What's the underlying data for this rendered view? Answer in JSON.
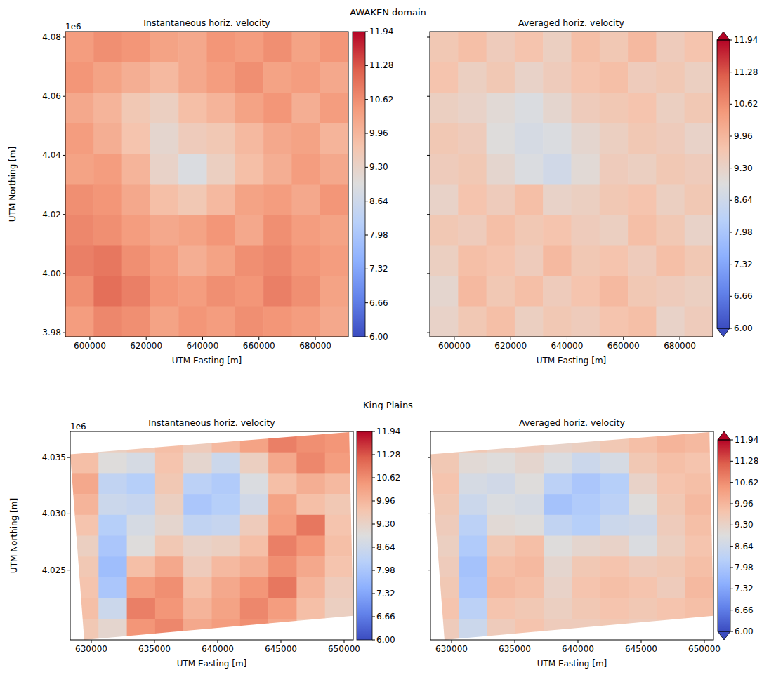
{
  "chart_data": [
    {
      "type": "heatmap",
      "group_title": "AWAKEN domain",
      "title": "Instantaneous horiz. velocity",
      "x_label": "UTM Easting [m]",
      "y_label": "UTM Northing [m]",
      "y_offset_label": "1e6",
      "xlim": [
        591300,
        691700
      ],
      "ylim": [
        3978600,
        4081900
      ],
      "xticks": [
        600000,
        620000,
        640000,
        660000,
        680000
      ],
      "yticks": [
        {
          "value": 3980000,
          "label": "3.98"
        },
        {
          "value": 4000000,
          "label": "4.00"
        },
        {
          "value": 4020000,
          "label": "4.02"
        },
        {
          "value": 4040000,
          "label": "4.04"
        },
        {
          "value": 4060000,
          "label": "4.06"
        },
        {
          "value": 4080000,
          "label": "4.08"
        }
      ],
      "colorbar": {
        "range": [
          6,
          11.94
        ],
        "ticks": [
          {
            "value": 6,
            "label": "6.00"
          },
          6.66,
          7.32,
          7.98,
          8.64,
          {
            "value": 9.3,
            "label": "9.30"
          },
          9.96,
          10.62,
          11.28,
          11.94
        ]
      },
      "cells": [
        [
          10.4,
          10.6,
          10.5,
          10.3,
          10.2,
          10.5,
          10.4,
          10.6,
          10.3,
          10.5
        ],
        [
          10.5,
          10.3,
          10.1,
          9.9,
          10.2,
          10.4,
          10.6,
          10.3,
          10.4,
          10.2
        ],
        [
          10.2,
          10.0,
          9.6,
          9.4,
          9.8,
          10.0,
          10.3,
          10.5,
          10.1,
          10.4
        ],
        [
          10.4,
          10.1,
          9.7,
          9.2,
          9.5,
          9.6,
          9.9,
          10.2,
          10.3,
          10.0
        ],
        [
          10.3,
          10.4,
          10.0,
          9.3,
          8.9,
          9.4,
          9.8,
          10.1,
          10.4,
          10.2
        ],
        [
          10.6,
          10.5,
          10.2,
          9.8,
          9.6,
          9.9,
          10.3,
          10.4,
          10.2,
          10.5
        ],
        [
          10.7,
          10.6,
          10.4,
          10.2,
          10.3,
          10.5,
          10.2,
          10.6,
          10.4,
          10.3
        ],
        [
          10.8,
          10.9,
          10.6,
          10.4,
          10.1,
          10.3,
          10.6,
          10.7,
          10.5,
          10.4
        ],
        [
          10.6,
          11.0,
          10.8,
          10.5,
          10.4,
          10.6,
          10.5,
          10.8,
          10.6,
          10.3
        ],
        [
          10.4,
          10.7,
          10.6,
          10.3,
          10.5,
          10.4,
          10.6,
          10.5,
          10.4,
          10.2
        ]
      ]
    },
    {
      "type": "heatmap",
      "title": "Averaged horiz. velocity",
      "x_label": "UTM Easting [m]",
      "tick_labels": "x",
      "xlim": [
        591300,
        691700
      ],
      "ylim": [
        3978600,
        4081900
      ],
      "xticks": [
        600000,
        620000,
        640000,
        660000,
        680000
      ],
      "yticks": [
        3980000,
        4000000,
        4020000,
        4040000,
        4060000,
        4080000
      ],
      "colorbar": {
        "range": [
          6,
          11.94
        ],
        "ticks": [
          {
            "value": 6,
            "label": "6.00"
          },
          6.66,
          7.32,
          7.98,
          8.64,
          {
            "value": 9.3,
            "label": "9.30"
          },
          9.96,
          10.62,
          11.28,
          11.94
        ]
      },
      "cells": [
        [
          9.6,
          9.8,
          9.5,
          9.7,
          9.4,
          9.8,
          9.6,
          9.9,
          9.5,
          9.7
        ],
        [
          9.7,
          9.4,
          9.6,
          9.3,
          9.5,
          9.7,
          9.8,
          9.5,
          9.6,
          9.4
        ],
        [
          9.4,
          9.3,
          9.1,
          8.9,
          9.2,
          9.5,
          9.6,
          9.7,
          9.4,
          9.6
        ],
        [
          9.6,
          9.5,
          9.0,
          8.8,
          8.9,
          9.2,
          9.4,
          9.6,
          9.5,
          9.3
        ],
        [
          9.5,
          9.6,
          9.2,
          8.9,
          8.7,
          9.1,
          9.5,
          9.4,
          9.6,
          9.5
        ],
        [
          9.3,
          9.7,
          9.5,
          9.8,
          9.3,
          9.4,
          9.6,
          9.7,
          9.4,
          9.6
        ],
        [
          9.6,
          9.5,
          9.8,
          9.6,
          9.7,
          9.5,
          9.4,
          9.8,
          9.6,
          9.3
        ],
        [
          9.4,
          9.8,
          9.7,
          9.5,
          9.9,
          9.6,
          9.7,
          9.5,
          9.8,
          9.6
        ],
        [
          9.2,
          9.9,
          9.6,
          9.8,
          9.5,
          9.7,
          9.9,
          9.6,
          9.5,
          9.4
        ],
        [
          9.3,
          9.6,
          9.8,
          9.4,
          9.6,
          9.5,
          9.7,
          9.8,
          9.3,
          9.5
        ]
      ]
    },
    {
      "type": "heatmap",
      "group_title": "King Plains",
      "title": "Instantaneous horiz. velocity",
      "x_label": "UTM Easting [m]",
      "y_label": "UTM Northing [m]",
      "y_offset_label": "1e6",
      "xlim": [
        628333,
        650722
      ],
      "ylim": [
        4018815,
        4037312
      ],
      "xticks": [
        630000,
        635000,
        640000,
        645000,
        650000
      ],
      "yticks": [
        {
          "value": 4025000,
          "label": "4.025"
        },
        {
          "value": 4030000,
          "label": "4.030"
        },
        {
          "value": 4035000,
          "label": "4.035"
        }
      ],
      "domain_outline": [
        [
          628333,
          4035290
        ],
        [
          650400,
          4037250
        ],
        [
          650720,
          4020950
        ],
        [
          629440,
          4018815
        ]
      ],
      "colorbar": {
        "range": [
          6,
          11.94
        ],
        "ticks": [
          {
            "value": 6,
            "label": "6.00"
          },
          6.66,
          7.32,
          7.98,
          8.64,
          {
            "value": 9.3,
            "label": "9.30"
          },
          9.96,
          10.62,
          11.28,
          11.94
        ]
      },
      "cells": [
        [
          9.3,
          9.4,
          9.6,
          9.8,
          9.5,
          9.9,
          10.3,
          10.8,
          10.6,
          10.5
        ],
        [
          9.8,
          9.0,
          8.8,
          9.7,
          9.2,
          8.6,
          9.4,
          10.2,
          10.7,
          10.4
        ],
        [
          10.2,
          8.4,
          8.2,
          9.6,
          8.3,
          8.1,
          8.9,
          9.8,
          10.1,
          9.9
        ],
        [
          10.0,
          8.6,
          8.5,
          9.4,
          8.0,
          8.2,
          8.7,
          10.3,
          9.8,
          9.6
        ],
        [
          9.7,
          8.2,
          8.8,
          9.2,
          8.4,
          8.5,
          9.5,
          10.4,
          10.9,
          9.7
        ],
        [
          9.4,
          8.0,
          9.0,
          9.6,
          9.3,
          9.4,
          9.8,
          10.8,
          10.5,
          9.8
        ],
        [
          9.6,
          7.8,
          9.8,
          10.2,
          9.5,
          9.9,
          10.1,
          10.6,
          10.2,
          9.7
        ],
        [
          9.7,
          8.0,
          10.4,
          10.6,
          9.8,
          10.2,
          10.5,
          10.9,
          10.0,
          9.5
        ],
        [
          9.8,
          8.6,
          10.8,
          10.5,
          10.0,
          10.3,
          10.7,
          10.4,
          9.8,
          9.4
        ],
        [
          9.6,
          9.2,
          10.5,
          10.7,
          10.2,
          10.4,
          10.6,
          10.2,
          9.6,
          9.3
        ]
      ]
    },
    {
      "type": "heatmap",
      "title": "Averaged horiz. velocity",
      "x_label": "UTM Easting [m]",
      "tick_labels": "x",
      "xlim": [
        628333,
        650722
      ],
      "ylim": [
        4018815,
        4037312
      ],
      "xticks": [
        630000,
        635000,
        640000,
        645000,
        650000
      ],
      "yticks": [
        4025000,
        4030000,
        4035000
      ],
      "domain_outline": [
        [
          628333,
          4035290
        ],
        [
          650400,
          4037250
        ],
        [
          650720,
          4020950
        ],
        [
          629440,
          4018815
        ]
      ],
      "colorbar": {
        "range": [
          6,
          11.94
        ],
        "ticks": [
          {
            "value": 6,
            "label": "6.00"
          },
          6.66,
          7.32,
          7.98,
          8.64,
          {
            "value": 9.3,
            "label": "9.30"
          },
          9.96,
          10.62,
          11.28,
          11.94
        ]
      },
      "cells": [
        [
          9.5,
          9.6,
          9.4,
          9.5,
          9.3,
          9.4,
          9.6,
          9.8,
          10.0,
          9.9
        ],
        [
          9.6,
          9.1,
          9.0,
          9.2,
          8.9,
          8.6,
          8.8,
          9.6,
          9.8,
          9.7
        ],
        [
          9.7,
          8.8,
          8.7,
          9.0,
          8.3,
          8.0,
          8.2,
          9.3,
          9.7,
          9.8
        ],
        [
          9.6,
          8.6,
          8.9,
          8.8,
          7.9,
          8.1,
          8.3,
          9.0,
          9.6,
          9.9
        ],
        [
          9.5,
          8.3,
          9.1,
          9.0,
          8.4,
          8.2,
          8.6,
          8.7,
          9.5,
          9.8
        ],
        [
          9.4,
          8.1,
          9.6,
          9.8,
          9.0,
          9.2,
          9.3,
          8.9,
          9.4,
          9.7
        ],
        [
          9.5,
          7.9,
          9.8,
          9.9,
          9.2,
          9.6,
          9.7,
          9.5,
          9.6,
          9.8
        ],
        [
          9.6,
          8.0,
          9.9,
          9.8,
          9.3,
          9.7,
          9.8,
          9.7,
          9.5,
          9.9
        ],
        [
          9.7,
          8.3,
          9.7,
          9.6,
          9.4,
          9.6,
          9.7,
          9.6,
          9.7,
          9.8
        ],
        [
          9.5,
          8.6,
          9.5,
          9.7,
          9.5,
          9.5,
          9.6,
          9.5,
          9.6,
          9.7
        ]
      ]
    }
  ]
}
